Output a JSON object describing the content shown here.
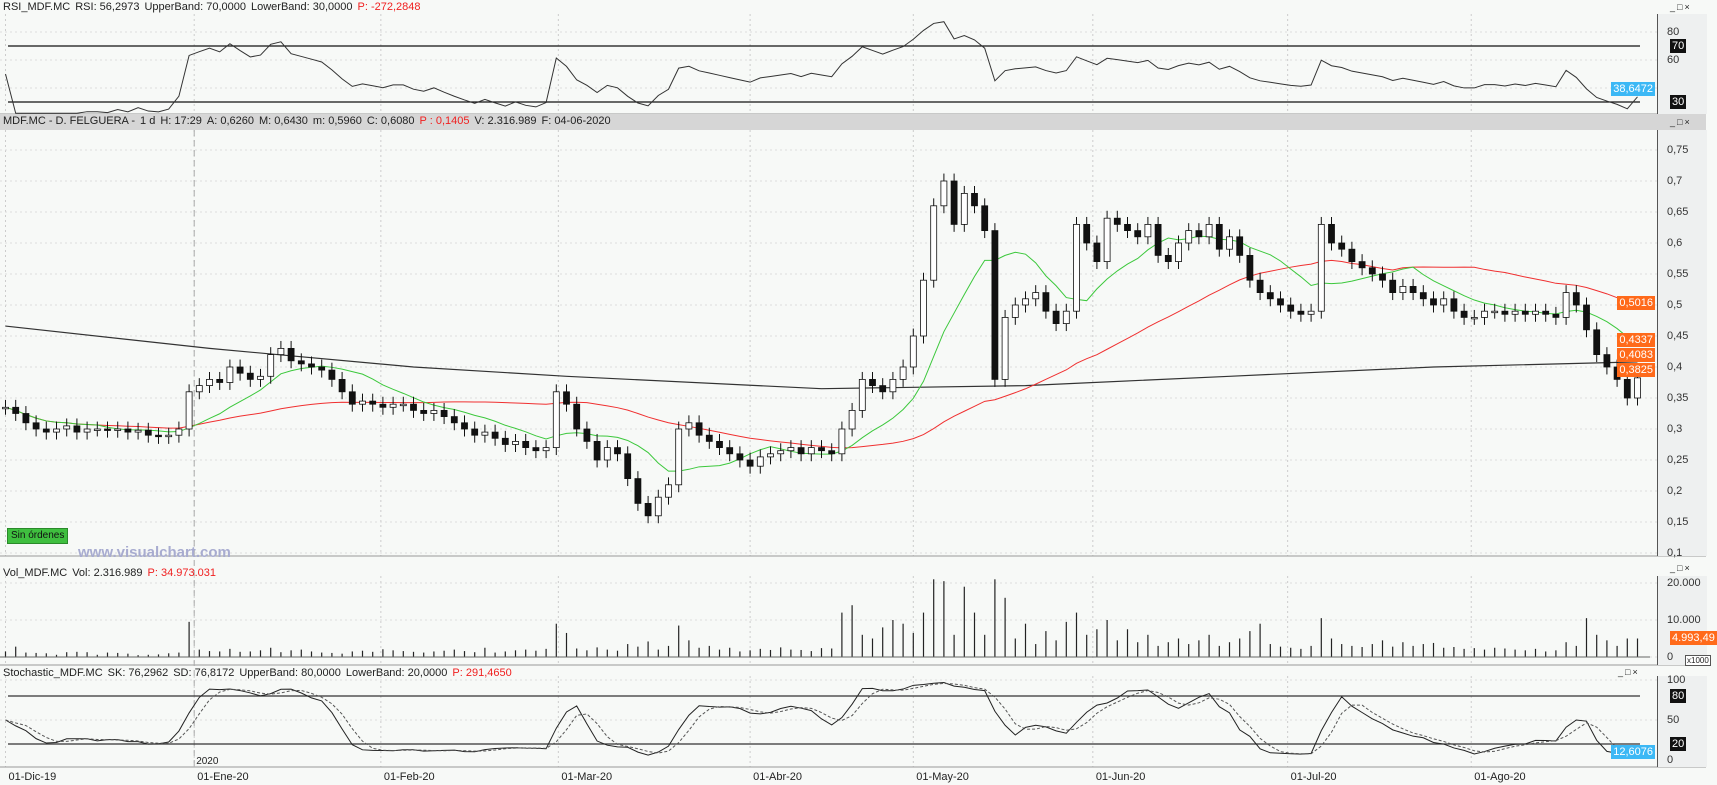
{
  "rsi_header": {
    "name": "RSI_MDF.MC",
    "rsi": "RSI: 56,2973",
    "upper": "UpperBand: 70,0000",
    "lower": "LowerBand: 30,0000",
    "p": "P: -272,2848"
  },
  "price_header": {
    "symbol": "MDF.MC - D. FELGUERA -",
    "period": "1 d",
    "h": "H: 17:29",
    "a": "A: 0,6260",
    "m": "M: 0,6430",
    "mn": "m: 0,5960",
    "c": "C: 0,6080",
    "p": "P : 0,1405",
    "v": "V: 2.316.989",
    "f": "F: 04-06-2020"
  },
  "vol_header": {
    "name": "Vol_MDF.MC",
    "vol": "Vol: 2.316.989",
    "p": "P: 34.973.031"
  },
  "stoch_header": {
    "name": "Stochastic_MDF.MC",
    "sk": "SK: 76,2962",
    "sd": "SD: 76,8172",
    "upper": "UpperBand: 80,0000",
    "lower": "LowerBand: 20,0000",
    "p": "P: 291,4650"
  },
  "orders_badge": "Sin órdenes",
  "watermark": "www.visualchart.com",
  "window_buttons": "_□×",
  "colors": {
    "ma_short": "#3cc83c",
    "ma_mid": "#f03030",
    "ma_long": "#333333",
    "last_price": "#ff6a1a",
    "indicator": "#3cb8f5"
  },
  "chart_data": [
    {
      "type": "candlestick",
      "title": "MDF.MC - D. FELGUERA",
      "ylim": [
        0.1,
        0.75
      ],
      "y_ticks": [
        "0,75",
        "0,7",
        "0,65",
        "0,6",
        "0,55",
        "0,5",
        "0,45",
        "0,4",
        "0,35",
        "0,3",
        "0,25",
        "0,2",
        "0,15",
        "0,1"
      ],
      "y_tick_values": [
        0.75,
        0.7,
        0.65,
        0.6,
        0.55,
        0.5,
        0.45,
        0.4,
        0.35,
        0.3,
        0.25,
        0.2,
        0.15,
        0.1
      ],
      "close": [
        0.335,
        0.325,
        0.31,
        0.3,
        0.295,
        0.3,
        0.305,
        0.295,
        0.3,
        0.3,
        0.298,
        0.3,
        0.295,
        0.298,
        0.29,
        0.288,
        0.29,
        0.3,
        0.36,
        0.37,
        0.38,
        0.375,
        0.4,
        0.39,
        0.38,
        0.385,
        0.42,
        0.43,
        0.41,
        0.405,
        0.4,
        0.395,
        0.38,
        0.36,
        0.34,
        0.345,
        0.34,
        0.335,
        0.34,
        0.34,
        0.33,
        0.325,
        0.33,
        0.32,
        0.31,
        0.3,
        0.29,
        0.295,
        0.285,
        0.275,
        0.28,
        0.27,
        0.265,
        0.27,
        0.36,
        0.34,
        0.3,
        0.28,
        0.25,
        0.27,
        0.26,
        0.22,
        0.18,
        0.16,
        0.19,
        0.21,
        0.3,
        0.31,
        0.29,
        0.28,
        0.27,
        0.26,
        0.25,
        0.24,
        0.255,
        0.26,
        0.265,
        0.27,
        0.26,
        0.27,
        0.265,
        0.26,
        0.3,
        0.33,
        0.38,
        0.37,
        0.36,
        0.38,
        0.4,
        0.45,
        0.54,
        0.66,
        0.7,
        0.63,
        0.68,
        0.66,
        0.62,
        0.38,
        0.48,
        0.5,
        0.51,
        0.52,
        0.49,
        0.47,
        0.49,
        0.63,
        0.6,
        0.57,
        0.64,
        0.63,
        0.62,
        0.61,
        0.63,
        0.58,
        0.57,
        0.6,
        0.62,
        0.61,
        0.63,
        0.59,
        0.61,
        0.58,
        0.54,
        0.52,
        0.51,
        0.5,
        0.49,
        0.485,
        0.49,
        0.63,
        0.6,
        0.59,
        0.57,
        0.56,
        0.55,
        0.54,
        0.52,
        0.53,
        0.52,
        0.51,
        0.5,
        0.51,
        0.49,
        0.48,
        0.48,
        0.49,
        0.49,
        0.485,
        0.49,
        0.485,
        0.49,
        0.485,
        0.48,
        0.52,
        0.5,
        0.46,
        0.42,
        0.4,
        0.38,
        0.35,
        0.3825
      ],
      "ma_short_period": 10,
      "ma_mid_period": 40,
      "ma_long": {
        "index": [
          0,
          20,
          40,
          55,
          80,
          100,
          120,
          140,
          160
        ],
        "value": [
          0.466,
          0.43,
          0.4,
          0.385,
          0.365,
          0.37,
          0.385,
          0.4,
          0.4083
        ]
      },
      "last_values": [
        "0,5016",
        "0,4337",
        "0,4083",
        "0,3825"
      ],
      "x_labels": [
        "01-Dic-19",
        "01-Ene-20",
        "01-Feb-20",
        "01-Mar-20",
        "01-Abr-20",
        "01-May-20",
        "01-Jun-20",
        "01-Jul-20",
        "01-Ago-20"
      ],
      "x_label_index": [
        0,
        18.5,
        36.8,
        54.2,
        73,
        89,
        106.6,
        125.7,
        143.7
      ],
      "year_label": "2020"
    },
    {
      "type": "line",
      "title": "RSI_MDF.MC",
      "period": 14,
      "ylim": [
        20,
        90
      ],
      "y_ticks": [
        "80",
        "60"
      ],
      "y_tick_values": [
        80,
        60
      ],
      "bands": [
        {
          "label": "70",
          "value": 70
        },
        {
          "label": "30",
          "value": 30
        }
      ],
      "last_value": "38,6472"
    },
    {
      "type": "bar",
      "title": "Vol_MDF.MC",
      "unit": "x1000",
      "ylim": [
        0,
        22000
      ],
      "y_ticks": [
        "20.000",
        "10.000",
        "0"
      ],
      "y_tick_values": [
        20000,
        10000,
        0
      ],
      "values": [
        1500,
        2800,
        1200,
        1100,
        1000,
        600,
        1300,
        1400,
        1300,
        600,
        1200,
        1100,
        900,
        500,
        600,
        700,
        1000,
        1200,
        9500,
        2000,
        1600,
        1500,
        2200,
        1400,
        1500,
        1800,
        2500,
        1300,
        1800,
        2000,
        1500,
        1200,
        1100,
        900,
        1500,
        1700,
        1400,
        2100,
        1800,
        1600,
        1400,
        1200,
        1500,
        1700,
        2000,
        1600,
        1300,
        2500,
        1200,
        1500,
        1800,
        2000,
        1700,
        2200,
        9000,
        6500,
        2300,
        1800,
        2600,
        2000,
        1700,
        3500,
        2800,
        4200,
        2000,
        3000,
        8500,
        4500,
        2500,
        3000,
        2000,
        2500,
        1500,
        1800,
        2200,
        1900,
        2600,
        2000,
        1900,
        1600,
        2400,
        2300,
        12000,
        14000,
        6000,
        5000,
        8000,
        10000,
        9000,
        6500,
        12000,
        21000,
        20500,
        6000,
        19000,
        12000,
        6000,
        21000,
        16000,
        5000,
        9000,
        3500,
        7000,
        4500,
        9500,
        12000,
        6000,
        7500,
        10000,
        4500,
        7500,
        4000,
        6000,
        3000,
        4000,
        5000,
        3500,
        4500,
        6000,
        3000,
        4000,
        5000,
        7000,
        9000,
        3500,
        2800,
        2500,
        2200,
        3000,
        10500,
        5000,
        3500,
        3000,
        2700,
        3500,
        4500,
        2800,
        4000,
        3000,
        3500,
        3800,
        2500,
        2700,
        2200,
        2400,
        2000,
        2500,
        2300,
        2000,
        1800,
        2200,
        1500,
        1800,
        4000,
        3000,
        10500,
        6000,
        4500,
        3000,
        5000,
        5000
      ],
      "last_value": "4.993,49"
    },
    {
      "type": "line",
      "title": "Stochastic_MDF.MC",
      "k_period": 14,
      "smooth": 3,
      "ylim": [
        0,
        100
      ],
      "y_ticks": [
        "100",
        "50",
        "0"
      ],
      "y_tick_values": [
        100,
        50,
        0
      ],
      "bands": [
        {
          "label": "80",
          "value": 80
        },
        {
          "label": "20",
          "value": 20
        }
      ],
      "last_value": "12,6076"
    }
  ]
}
